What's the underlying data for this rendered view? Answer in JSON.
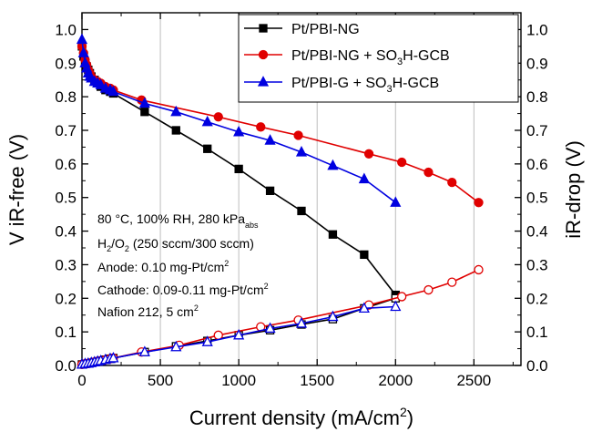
{
  "chart_data": {
    "type": "line",
    "xlabel": "Current density (mA/cm²)",
    "ylabel_left": "V iR-free (V)",
    "ylabel_right": "iR-drop (V)",
    "xlim": [
      0,
      2800
    ],
    "ylim": [
      0,
      1.05
    ],
    "x_ticks": [
      0,
      500,
      1000,
      1500,
      2000,
      2500
    ],
    "y_ticks": [
      0.0,
      0.1,
      0.2,
      0.3,
      0.4,
      0.5,
      0.6,
      0.7,
      0.8,
      0.9,
      1.0
    ],
    "grid": "vertical lines at major x ticks",
    "legend_position": "top-right",
    "series": [
      {
        "name": "Pt/PBI-NG",
        "color": "#000000",
        "marker": "square",
        "kind": "polarization",
        "x": [
          0,
          10,
          20,
          30,
          40,
          50,
          60,
          80,
          100,
          120,
          150,
          180,
          200,
          400,
          600,
          800,
          1000,
          1200,
          1400,
          1600,
          1800,
          2000
        ],
        "y": [
          0.95,
          0.92,
          0.9,
          0.89,
          0.88,
          0.87,
          0.86,
          0.85,
          0.84,
          0.83,
          0.82,
          0.815,
          0.81,
          0.755,
          0.7,
          0.645,
          0.585,
          0.52,
          0.46,
          0.39,
          0.33,
          0.21
        ]
      },
      {
        "name": "Pt/PBI-NG + SO3H-GCB",
        "color": "#e00000",
        "marker": "circle",
        "kind": "polarization",
        "x": [
          0,
          10,
          20,
          30,
          40,
          50,
          60,
          80,
          100,
          120,
          150,
          180,
          200,
          380,
          870,
          1140,
          1380,
          1830,
          2040,
          2210,
          2360,
          2530
        ],
        "y": [
          0.95,
          0.93,
          0.91,
          0.895,
          0.88,
          0.87,
          0.86,
          0.85,
          0.845,
          0.84,
          0.83,
          0.825,
          0.82,
          0.79,
          0.74,
          0.71,
          0.685,
          0.63,
          0.605,
          0.575,
          0.545,
          0.485
        ]
      },
      {
        "name": "Pt/PBI-G + SO3H-GCB",
        "color": "#0000e0",
        "marker": "triangle",
        "kind": "polarization",
        "x": [
          0,
          10,
          20,
          30,
          40,
          50,
          60,
          80,
          100,
          120,
          150,
          180,
          200,
          400,
          600,
          800,
          1000,
          1200,
          1400,
          1600,
          1800,
          2000
        ],
        "y": [
          0.97,
          0.93,
          0.9,
          0.885,
          0.87,
          0.86,
          0.855,
          0.845,
          0.84,
          0.835,
          0.825,
          0.82,
          0.815,
          0.78,
          0.755,
          0.725,
          0.695,
          0.67,
          0.635,
          0.595,
          0.555,
          0.485
        ]
      },
      {
        "name": "Pt/PBI-NG",
        "color": "#000000",
        "marker": "square-open",
        "kind": "ir-drop",
        "x": [
          0,
          20,
          40,
          60,
          80,
          100,
          120,
          150,
          180,
          200,
          400,
          600,
          800,
          1000,
          1200,
          1400,
          1600,
          1800,
          2000
        ],
        "y": [
          0.003,
          0.005,
          0.006,
          0.008,
          0.01,
          0.012,
          0.014,
          0.017,
          0.02,
          0.022,
          0.04,
          0.057,
          0.073,
          0.09,
          0.105,
          0.122,
          0.138,
          0.17,
          0.2
        ]
      },
      {
        "name": "Pt/PBI-NG + SO3H-GCB",
        "color": "#e00000",
        "marker": "circle-open",
        "kind": "ir-drop",
        "x": [
          0,
          20,
          40,
          60,
          80,
          100,
          120,
          150,
          180,
          200,
          380,
          620,
          870,
          1140,
          1380,
          1830,
          2040,
          2210,
          2360,
          2530
        ],
        "y": [
          0.003,
          0.005,
          0.006,
          0.008,
          0.01,
          0.012,
          0.014,
          0.017,
          0.02,
          0.022,
          0.04,
          0.06,
          0.09,
          0.115,
          0.135,
          0.18,
          0.205,
          0.225,
          0.248,
          0.285
        ]
      },
      {
        "name": "Pt/PBI-G + SO3H-GCB",
        "color": "#0000e0",
        "marker": "triangle-open",
        "kind": "ir-drop",
        "x": [
          0,
          20,
          40,
          60,
          80,
          100,
          120,
          150,
          180,
          200,
          400,
          600,
          800,
          1000,
          1200,
          1400,
          1600,
          1800,
          2000
        ],
        "y": [
          0.003,
          0.005,
          0.006,
          0.008,
          0.01,
          0.012,
          0.014,
          0.017,
          0.02,
          0.022,
          0.04,
          0.055,
          0.07,
          0.09,
          0.11,
          0.125,
          0.145,
          0.17,
          0.175
        ]
      }
    ],
    "annotations": [
      "80 °C, 100% RH, 280 kPa_abs",
      "H₂/O₂ (250 sccm/300 sccm)",
      "Anode: 0.10 mg-Pt/cm²",
      "Cathode: 0.09-0.11 mg-Pt/cm²",
      "Nafion 212, 5 cm²"
    ]
  }
}
